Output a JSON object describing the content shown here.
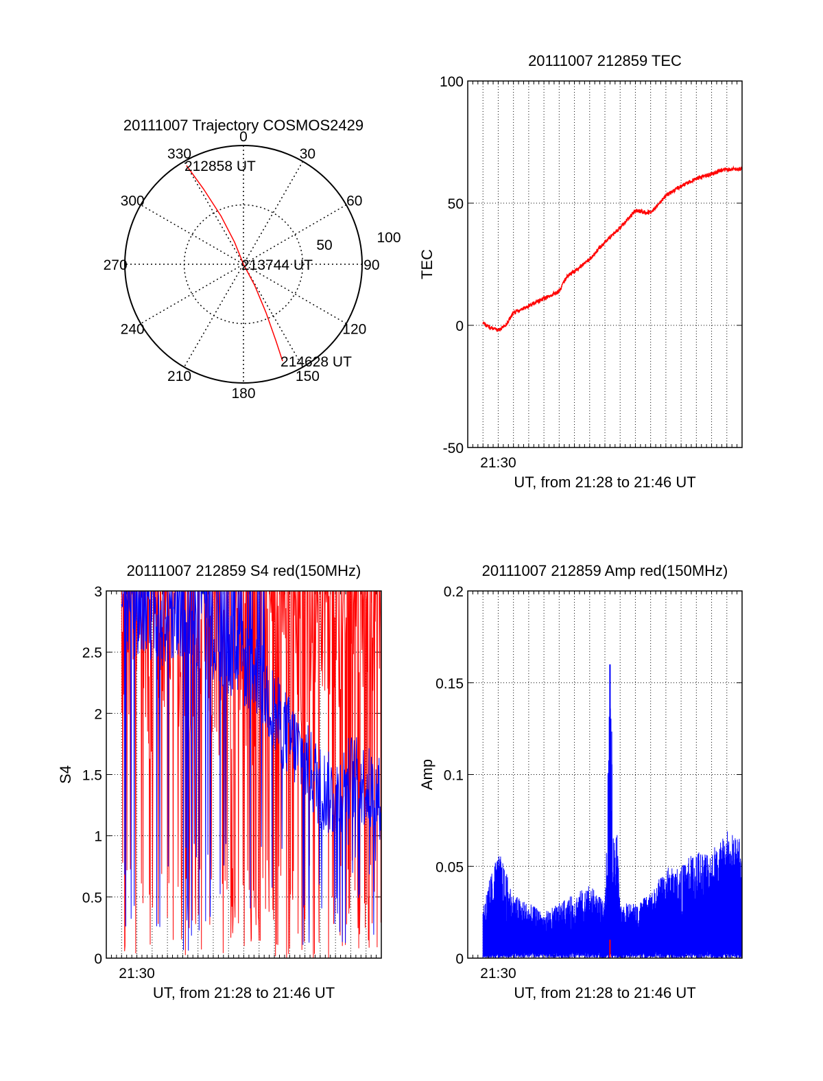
{
  "colors": {
    "red": "#ff0000",
    "blue": "#0000ff",
    "black": "#000000"
  },
  "chart_data": [
    {
      "type": "polar",
      "title": "20111007 Trajectory COSMOS2429",
      "angle_labels": [
        "0",
        "30",
        "60",
        "90",
        "120",
        "150",
        "180",
        "210",
        "240",
        "270",
        "300",
        "330"
      ],
      "radius_labels": [
        "50",
        "100"
      ],
      "rlim": [
        0,
        100
      ],
      "series": [
        {
          "points": [
            {
              "az": 330,
              "r": 96
            },
            {
              "az": 332,
              "r": 72
            },
            {
              "az": 335,
              "r": 45
            },
            {
              "az": 338,
              "r": 20
            },
            {
              "az": 0,
              "r": 0
            },
            {
              "az": 152,
              "r": 20
            },
            {
              "az": 155,
              "r": 45
            },
            {
              "az": 157,
              "r": 70
            },
            {
              "az": 158,
              "r": 88
            }
          ]
        }
      ],
      "annotations": [
        {
          "text": "212858 UT",
          "az": 330,
          "r": 96
        },
        {
          "text": "213744 UT",
          "az": 0,
          "r": 0
        },
        {
          "text": "214628 UT",
          "az": 158,
          "r": 88
        }
      ]
    },
    {
      "type": "line",
      "title": "20111007 212859 TEC",
      "xlabel": "UT, from 21:28 to 21:46 UT",
      "ylabel": "TEC",
      "xlim": [
        "21:28",
        "21:46"
      ],
      "ylim": [
        -50,
        100
      ],
      "yticks": [
        "-50",
        "0",
        "50",
        "100"
      ],
      "xtick_label": {
        "text": "21:30",
        "time": "21:30"
      },
      "grid": true,
      "series": [
        {
          "x": [
            "21:29",
            "21:29:30",
            "21:30",
            "21:30:30",
            "21:31",
            "21:32",
            "21:33",
            "21:34",
            "21:34:30",
            "21:35",
            "21:36",
            "21:37",
            "21:38",
            "21:39",
            "21:40",
            "21:41",
            "21:42",
            "21:43",
            "21:44",
            "21:45",
            "21:46"
          ],
          "values": [
            1,
            -1,
            -2,
            0,
            5,
            8,
            11,
            14,
            20,
            22,
            27,
            34,
            40,
            47,
            46,
            53,
            57,
            60,
            62,
            64,
            64
          ]
        }
      ]
    },
    {
      "type": "line",
      "title": "20111007 212859 S4 red(150MHz)",
      "xlabel": "UT, from 21:28 to 21:46 UT",
      "ylabel": "S4",
      "xlim": [
        "21:28",
        "21:46"
      ],
      "ylim": [
        0,
        3
      ],
      "yticks": [
        "0",
        "0.5",
        "1",
        "1.5",
        "2",
        "2.5",
        "3"
      ],
      "xtick_label": {
        "text": "21:30",
        "time": "21:30"
      },
      "grid": true,
      "series": [
        {
          "x": [
            "21:29",
            "21:30",
            "21:31",
            "21:32",
            "21:33",
            "21:34",
            "21:35",
            "21:36",
            "21:37",
            "21:38",
            "21:39",
            "21:40",
            "21:41",
            "21:42",
            "21:43",
            "21:44",
            "21:45",
            "21:46"
          ],
          "values": [
            2.6,
            2.7,
            2.2,
            2.8,
            2.5,
            2.4,
            2.3,
            2.2,
            2.5,
            2.0,
            2.7,
            2.9,
            2.5,
            2.9,
            2.6,
            2.8,
            2.9,
            2.7
          ]
        },
        {
          "x": [
            "21:29",
            "21:30",
            "21:31",
            "21:32",
            "21:33",
            "21:34",
            "21:35",
            "21:36",
            "21:37",
            "21:38",
            "21:39",
            "21:40",
            "21:41",
            "21:42",
            "21:43",
            "21:44",
            "21:45",
            "21:46"
          ],
          "values": [
            2.9,
            2.8,
            2.7,
            2.6,
            2.8,
            2.7,
            2.6,
            2.5,
            2.4,
            2.3,
            2.0,
            1.8,
            1.6,
            1.4,
            1.3,
            1.5,
            1.4,
            1.3
          ]
        }
      ]
    },
    {
      "type": "line",
      "title": "20111007 212859 Amp red(150MHz)",
      "xlabel": "UT, from 21:28 to 21:46 UT",
      "ylabel": "Amp",
      "xlim": [
        "21:28",
        "21:46"
      ],
      "ylim": [
        0,
        0.2
      ],
      "yticks": [
        "0",
        "0.05",
        "0.1",
        "0.15",
        "0.2"
      ],
      "xtick_label": {
        "text": "21:30",
        "time": "21:30"
      },
      "grid": true,
      "series": [
        {
          "x": [
            "21:29",
            "21:30",
            "21:31",
            "21:32",
            "21:33",
            "21:34",
            "21:35",
            "21:36",
            "21:37",
            "21:37:20",
            "21:38",
            "21:39",
            "21:40",
            "21:41",
            "21:42",
            "21:43",
            "21:44",
            "21:45",
            "21:46"
          ],
          "values": [
            0.03,
            0.06,
            0.035,
            0.03,
            0.025,
            0.03,
            0.035,
            0.04,
            0.03,
            0.16,
            0.03,
            0.03,
            0.035,
            0.05,
            0.05,
            0.06,
            0.06,
            0.07,
            0.065
          ]
        },
        {
          "x": [
            "21:37:20"
          ],
          "values": [
            0.01
          ]
        }
      ]
    }
  ]
}
